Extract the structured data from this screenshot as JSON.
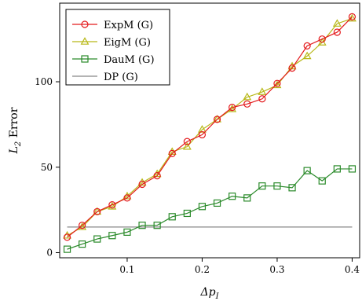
{
  "chart_data": {
    "type": "line",
    "title": "",
    "xlabel": "Δp",
    "xlabel_sub": "I",
    "ylabel": "L",
    "ylabel_sub": "2",
    "ylabel_rest": " Error",
    "xlim": [
      0.01,
      0.41
    ],
    "ylim": [
      -3,
      146
    ],
    "x_ticks": [
      0.1,
      0.2,
      0.3,
      0.4
    ],
    "x_tick_labels": [
      "0.1",
      "0.2",
      "0.3",
      "0.4"
    ],
    "y_ticks": [
      0,
      50,
      100
    ],
    "y_tick_labels": [
      "0",
      "50",
      "100"
    ],
    "grid": false,
    "legend_position": "top-left",
    "x": [
      0.02,
      0.04,
      0.06,
      0.08,
      0.1,
      0.12,
      0.14,
      0.16,
      0.18,
      0.2,
      0.22,
      0.24,
      0.26,
      0.28,
      0.3,
      0.32,
      0.34,
      0.36,
      0.38,
      0.4
    ],
    "series": [
      {
        "name": "ExpM (G)",
        "color": "#e41a1c",
        "marker": "circle",
        "values": [
          9,
          16,
          24,
          28,
          32,
          40,
          45,
          58,
          65,
          69,
          78,
          85,
          87,
          90,
          99,
          108,
          121,
          125,
          129,
          138
        ]
      },
      {
        "name": "EigM (G)",
        "color": "#b8b818",
        "marker": "triangle",
        "values": [
          10,
          15,
          24,
          27,
          33,
          41,
          46,
          59,
          62,
          72,
          78,
          84,
          91,
          94,
          98,
          109,
          115,
          123,
          134,
          137
        ]
      },
      {
        "name": "DauM (G)",
        "color": "#2a8a2a",
        "marker": "square",
        "values": [
          2,
          5,
          8,
          10,
          12,
          16,
          16,
          21,
          23,
          27,
          29,
          33,
          32,
          39,
          39,
          38,
          48,
          42,
          49,
          49
        ]
      },
      {
        "name": "DP (G)",
        "color": "#888888",
        "marker": "none",
        "values": [
          15,
          15,
          15,
          15,
          15,
          15,
          15,
          15,
          15,
          15,
          15,
          15,
          15,
          15,
          15,
          15,
          15,
          15,
          15,
          15
        ]
      }
    ]
  }
}
